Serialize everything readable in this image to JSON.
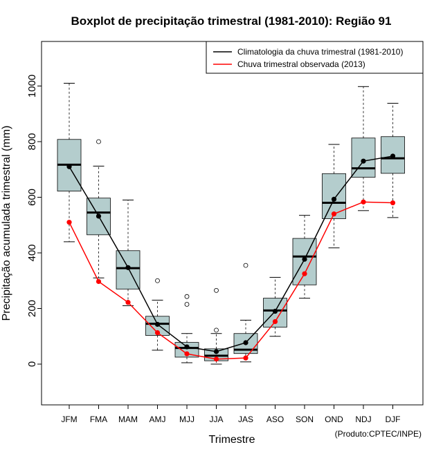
{
  "chart_data": {
    "type": "boxplot",
    "title": "Boxplot de precipitação trimestral (1981-2010): Região 91",
    "xlabel": "Trimestre",
    "ylabel": "Precipitação acumulada trimestral (mm)",
    "ylim": [
      -150,
      1150
    ],
    "yticks": [
      0,
      200,
      400,
      600,
      800,
      1000
    ],
    "categories": [
      "JFM",
      "FMA",
      "MAM",
      "AMJ",
      "MJJ",
      "JJA",
      "JAS",
      "ASO",
      "SON",
      "OND",
      "NDJ",
      "DJF"
    ],
    "boxes": [
      {
        "whisker_low": 440,
        "q1": 622,
        "median": 717,
        "q3": 808,
        "whisker_high": 1010,
        "outliers": []
      },
      {
        "whisker_low": 310,
        "q1": 465,
        "median": 545,
        "q3": 597,
        "whisker_high": 712,
        "outliers": [
          800
        ]
      },
      {
        "whisker_low": 210,
        "q1": 270,
        "median": 345,
        "q3": 408,
        "whisker_high": 590,
        "outliers": []
      },
      {
        "whisker_low": 50,
        "q1": 103,
        "median": 145,
        "q3": 172,
        "whisker_high": 230,
        "outliers": [
          300
        ]
      },
      {
        "whisker_low": 5,
        "q1": 25,
        "median": 58,
        "q3": 78,
        "whisker_high": 110,
        "outliers": [
          215,
          243
        ]
      },
      {
        "whisker_low": 0,
        "q1": 12,
        "median": 30,
        "q3": 55,
        "whisker_high": 110,
        "outliers": [
          122,
          265
        ]
      },
      {
        "whisker_low": 8,
        "q1": 38,
        "median": 52,
        "q3": 110,
        "whisker_high": 158,
        "outliers": [
          355
        ]
      },
      {
        "whisker_low": 100,
        "q1": 133,
        "median": 193,
        "q3": 237,
        "whisker_high": 312,
        "outliers": []
      },
      {
        "whisker_low": 237,
        "q1": 285,
        "median": 387,
        "q3": 452,
        "whisker_high": 535,
        "outliers": []
      },
      {
        "whisker_low": 418,
        "q1": 523,
        "median": 580,
        "q3": 685,
        "whisker_high": 790,
        "outliers": []
      },
      {
        "whisker_low": 552,
        "q1": 672,
        "median": 704,
        "q3": 813,
        "whisker_high": 998,
        "outliers": []
      },
      {
        "whisker_low": 527,
        "q1": 686,
        "median": 740,
        "q3": 818,
        "whisker_high": 938,
        "outliers": []
      }
    ],
    "series": [
      {
        "name": "Climatologia da chuva trimestral (1981-2010)",
        "color": "#000000",
        "values": [
          710,
          532,
          347,
          143,
          62,
          45,
          77,
          190,
          377,
          593,
          730,
          748
        ]
      },
      {
        "name": "Chuva trimestral observada (2013)",
        "color": "#ff0000",
        "values": [
          510,
          297,
          222,
          113,
          37,
          18,
          22,
          153,
          325,
          540,
          583,
          580
        ]
      }
    ],
    "legend_position": "top-right",
    "box_fill": "#b4cdcd",
    "credit": "(Produto:CPTEC/INPE)"
  }
}
